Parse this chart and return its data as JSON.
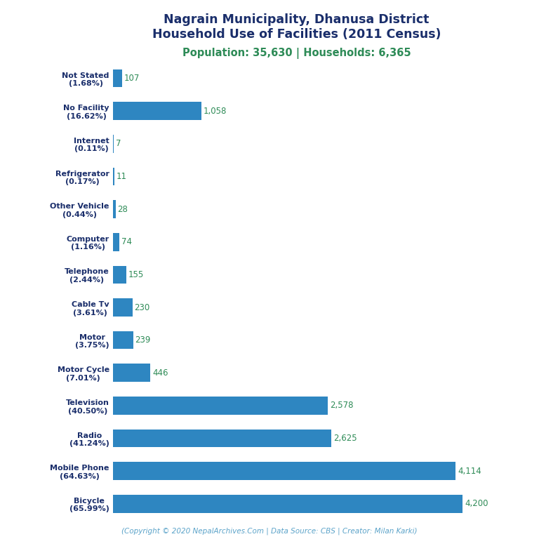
{
  "title_line1": "Nagrain Municipality, Dhanusa District",
  "title_line2": "Household Use of Facilities (2011 Census)",
  "subtitle": "Population: 35,630 | Households: 6,365",
  "footer": "(Copyright © 2020 NepalArchives.Com | Data Source: CBS | Creator: Milan Karki)",
  "categories": [
    "Not Stated\n(1.68%)",
    "No Facility\n(16.62%)",
    "Internet\n(0.11%)",
    "Refrigerator\n(0.17%)",
    "Other Vehicle\n(0.44%)",
    "Computer\n(1.16%)",
    "Telephone\n(2.44%)",
    "Cable Tv\n(3.61%)",
    "Motor\n(3.75%)",
    "Motor Cycle\n(7.01%)",
    "Television\n(40.50%)",
    "Radio\n(41.24%)",
    "Mobile Phone\n(64.63%)",
    "Bicycle\n(65.99%)"
  ],
  "values": [
    107,
    1058,
    7,
    11,
    28,
    74,
    155,
    230,
    239,
    446,
    2578,
    2625,
    4114,
    4200
  ],
  "bar_color": "#2e86c1",
  "title_color": "#1a2e6b",
  "subtitle_color": "#2e8b57",
  "footer_color": "#5ba3c9",
  "value_color": "#2e8b57",
  "label_color": "#1a2e6b",
  "background_color": "#ffffff",
  "xlim": [
    0,
    4600
  ]
}
